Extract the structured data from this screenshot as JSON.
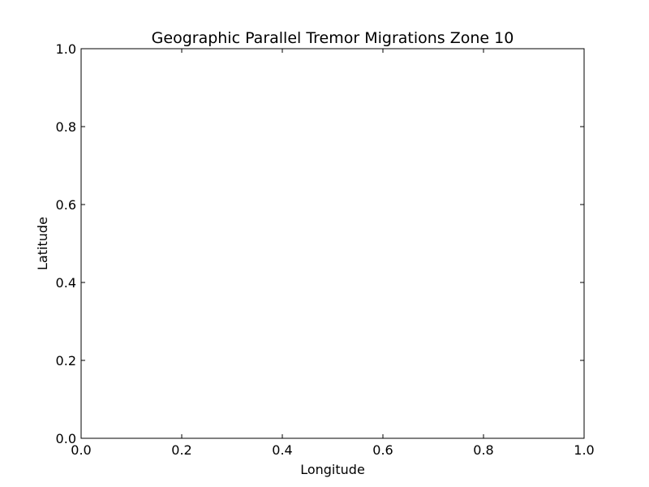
{
  "chart_data": {
    "type": "scatter",
    "title": "Geographic Parallel Tremor Migrations Zone 10",
    "xlabel": "Longitude",
    "ylabel": "Latitude",
    "xlim": [
      0.0,
      1.0
    ],
    "ylim": [
      0.0,
      1.0
    ],
    "xticks": [
      "0.0",
      "0.2",
      "0.4",
      "0.6",
      "0.8",
      "1.0"
    ],
    "yticks": [
      "0.0",
      "0.2",
      "0.4",
      "0.6",
      "0.8",
      "1.0"
    ],
    "grid": false,
    "series": [],
    "colors": {
      "axes": "#000000",
      "background": "#ffffff"
    }
  }
}
